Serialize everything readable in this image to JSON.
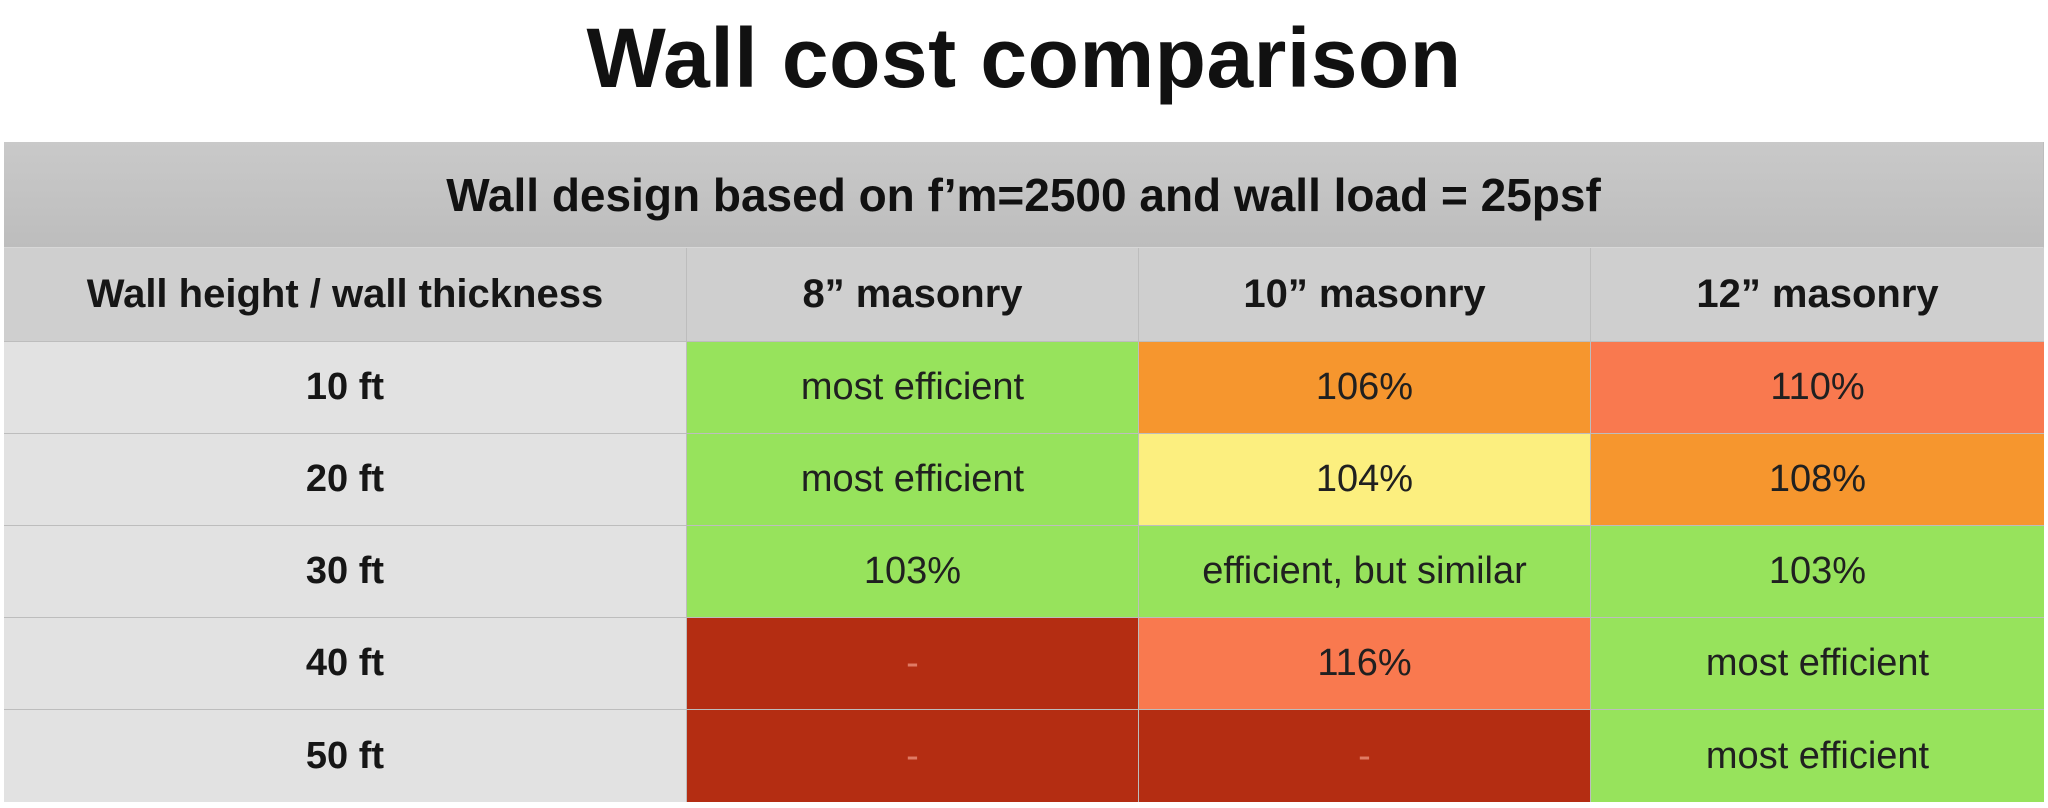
{
  "title": "Wall cost comparison",
  "colors": {
    "green": "#97e35c",
    "orange": "#f6962e",
    "red_orange": "#f9794f",
    "yellow": "#fcef7f",
    "dark_red": "#b42d12"
  },
  "chart_data": {
    "type": "table",
    "title": "Wall cost comparison",
    "caption": "Wall design based on f’m=2500 and wall load = 25psf",
    "columns": [
      "Wall height / wall thickness",
      "8” masonry",
      "10” masonry",
      "12” masonry"
    ],
    "rows": [
      {
        "label": "10 ft",
        "cells": [
          {
            "text": "most efficient",
            "color": "green"
          },
          {
            "text": "106%",
            "color": "orange"
          },
          {
            "text": "110%",
            "color": "red_orange"
          }
        ]
      },
      {
        "label": "20 ft",
        "cells": [
          {
            "text": "most efficient",
            "color": "green"
          },
          {
            "text": "104%",
            "color": "yellow"
          },
          {
            "text": "108%",
            "color": "orange"
          }
        ]
      },
      {
        "label": "30 ft",
        "cells": [
          {
            "text": "103%",
            "color": "green"
          },
          {
            "text": "efficient, but similar",
            "color": "green"
          },
          {
            "text": "103%",
            "color": "green"
          }
        ]
      },
      {
        "label": "40 ft",
        "cells": [
          {
            "text": "-",
            "color": "dark_red"
          },
          {
            "text": "116%",
            "color": "red_orange"
          },
          {
            "text": "most efficient",
            "color": "green"
          }
        ]
      },
      {
        "label": "50 ft",
        "cells": [
          {
            "text": "-",
            "color": "dark_red"
          },
          {
            "text": "-",
            "color": "dark_red"
          },
          {
            "text": "most efficient",
            "color": "green"
          }
        ]
      }
    ]
  }
}
